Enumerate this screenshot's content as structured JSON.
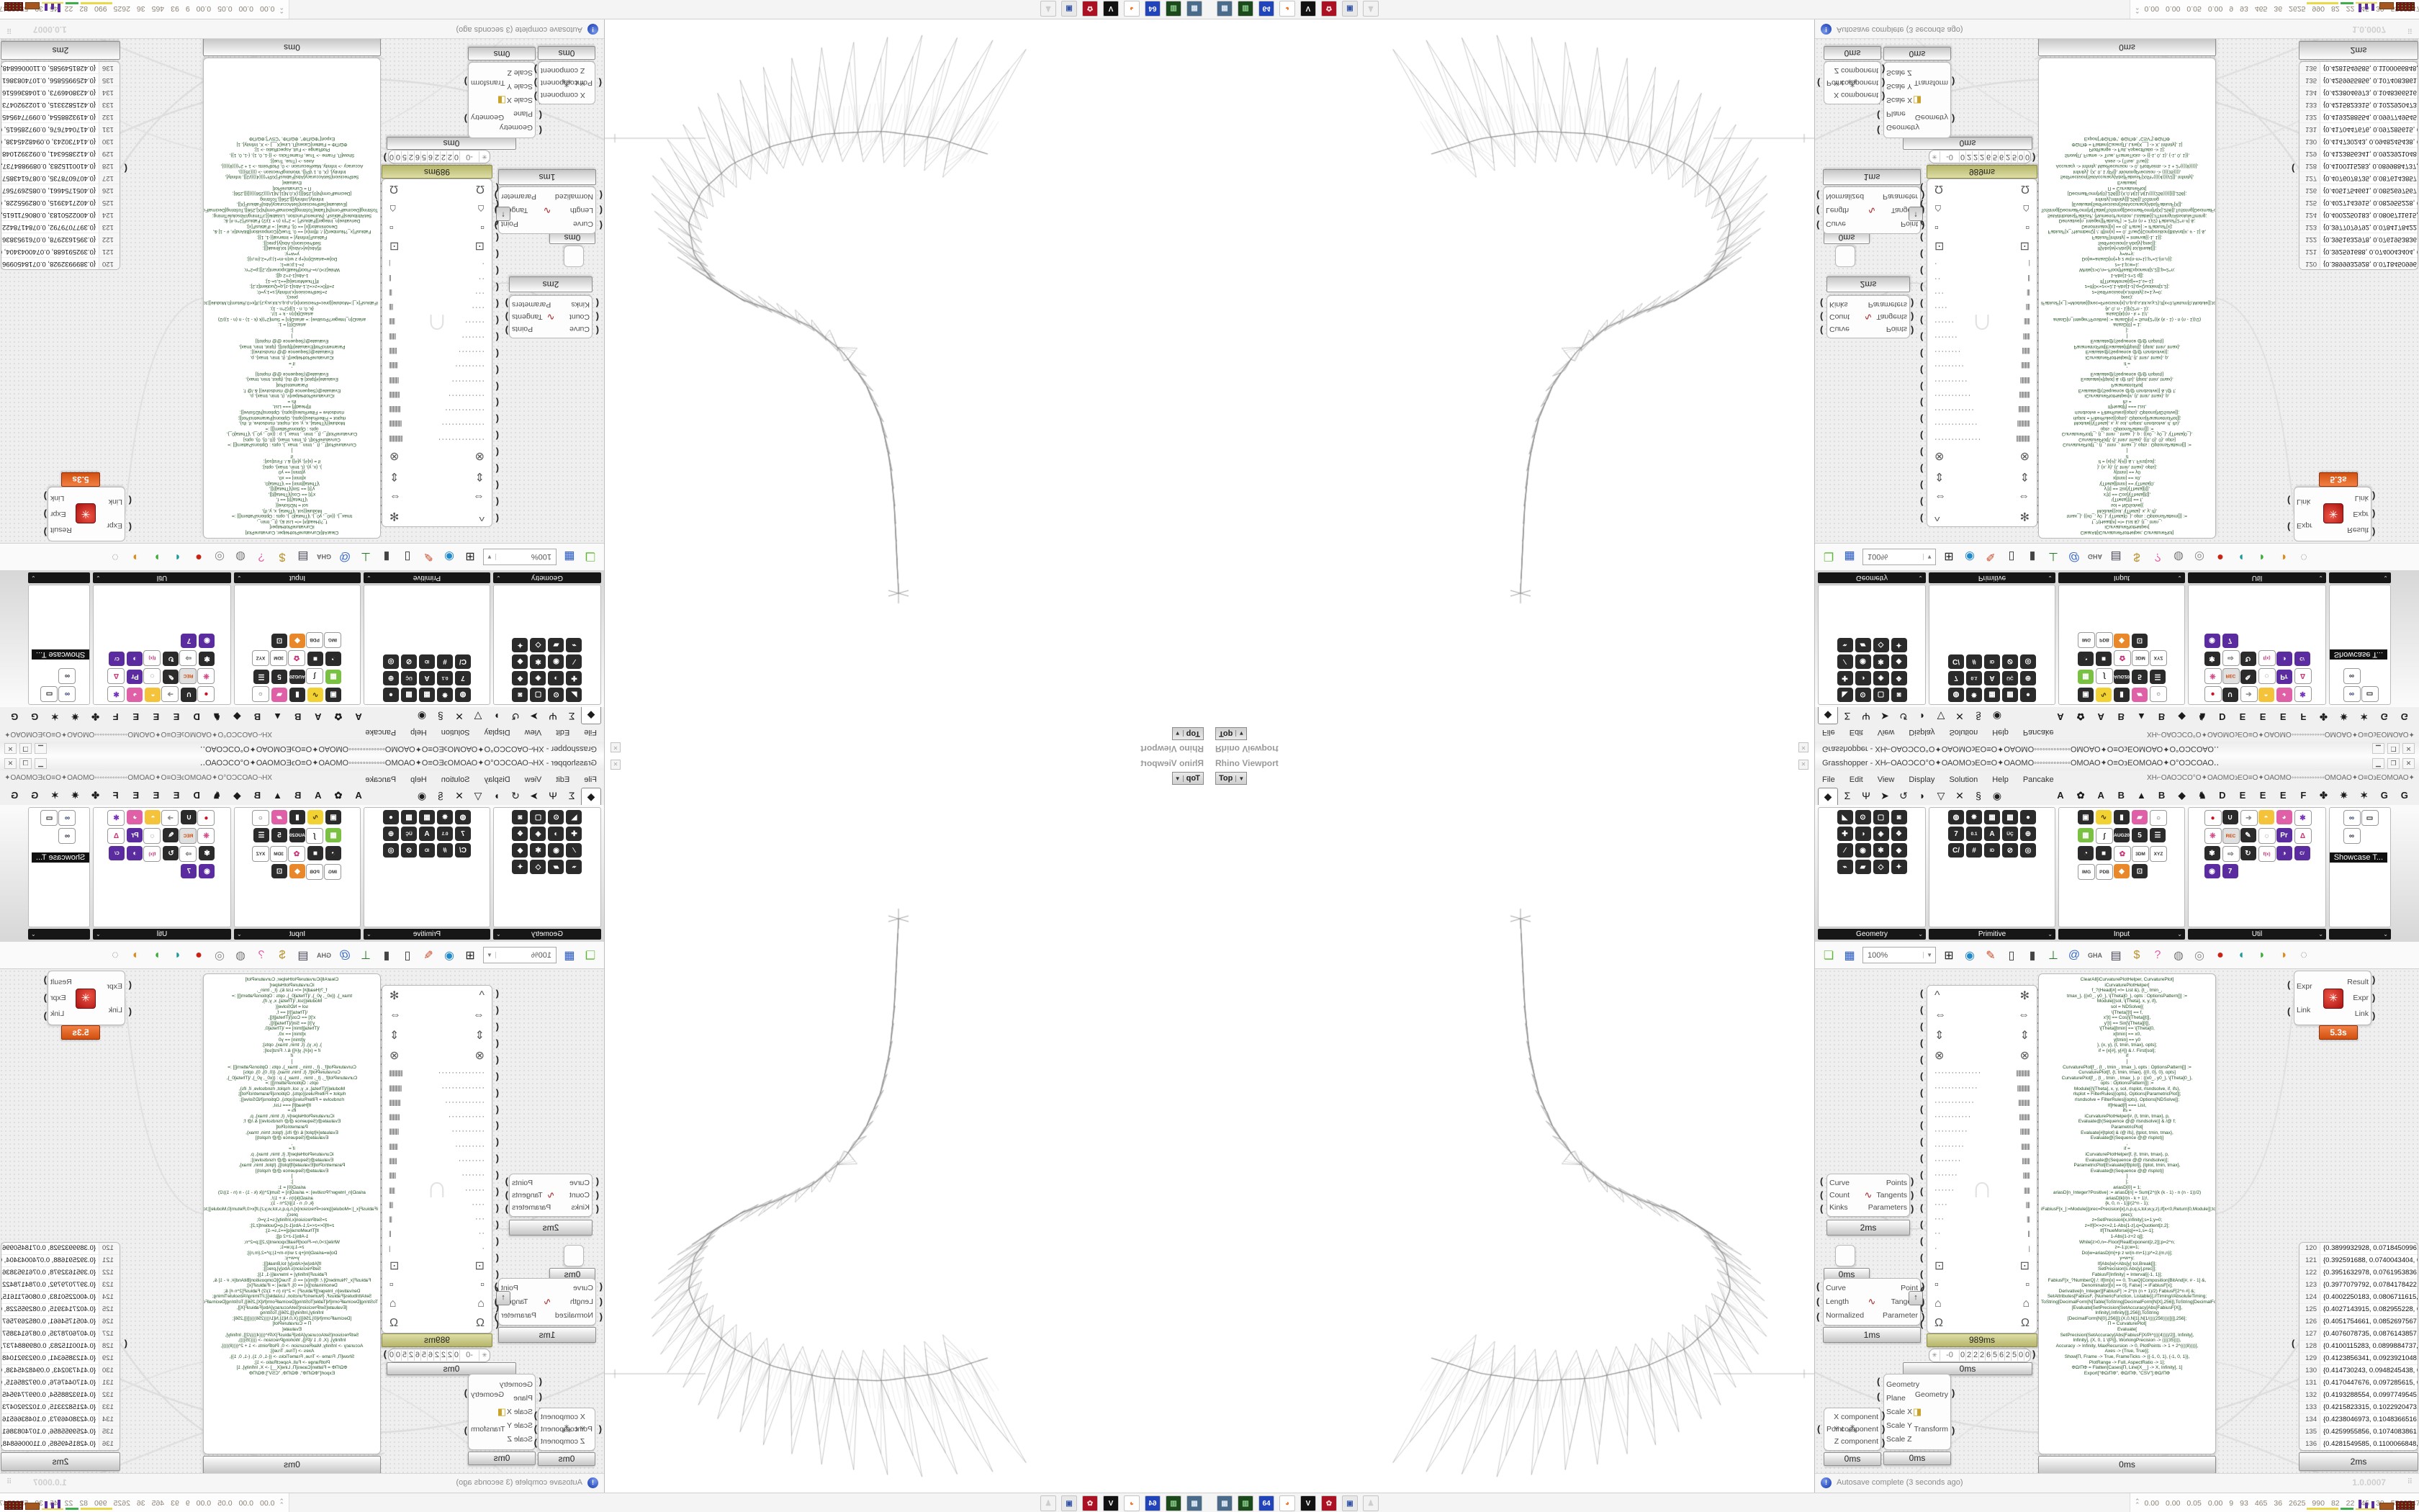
{
  "window": {
    "title": "Grasshopper - XH⌐ΟΑΟϽCΟ°Ο✦ΟΑΟΜΟ϶ΕΟ≡Ο✦ΟΑΟΜΟ◦◦◦◦◦◦◦◦◦◦◦◦◦ΟΜΟΑΟ✦Ο≡Ο϶ΕΟΜΟΑΟ✦Ο°ΟϽCΟΑΟ‥",
    "buttons": {
      "minimize": "▁",
      "maximize": "❐",
      "close": "✕"
    }
  },
  "menu": {
    "items": [
      "File",
      "Edit",
      "View",
      "Display",
      "Solution",
      "Help",
      "Pancake"
    ],
    "right_text": "XH⌐ΟΑΟϽCΟ°Ο✦ΟΑΟΜΟ϶ΕΟ≡Ο✦ΟΑΟΜΟ◦◦◦◦◦◦◦◦◦◦◦◦◦ΟΜΟΑΟ✦Ο≡Ο϶ΕΟΜΟΑΟ✦Ο°ΟϽCΟΑΟ‥"
  },
  "tabs": {
    "icon_tabs": [
      {
        "name": "params",
        "glyph": "◆",
        "active": true
      },
      {
        "name": "maths",
        "glyph": "Σ"
      },
      {
        "name": "sets",
        "glyph": "Ψ"
      },
      {
        "name": "vector",
        "glyph": "➤"
      },
      {
        "name": "curve",
        "glyph": "↺"
      },
      {
        "name": "surface",
        "glyph": "◗"
      },
      {
        "name": "mesh",
        "glyph": "▽"
      },
      {
        "name": "intersect",
        "glyph": "✕"
      },
      {
        "name": "transform",
        "glyph": "§"
      },
      {
        "name": "display",
        "glyph": "◉"
      }
    ],
    "letter_tabs": [
      "A",
      "✿",
      "A",
      "B",
      "▲",
      "B",
      "◆",
      "♞",
      "D",
      "E",
      "E",
      "E",
      "F",
      "✤",
      "✷",
      "✶",
      "G",
      "G"
    ]
  },
  "palettes": {
    "tooltip": "Showcase T...",
    "groups": [
      {
        "label": "Geometry",
        "cols": 4,
        "icons": [
          {
            "g": "◣"
          },
          {
            "g": "⊙"
          },
          {
            "g": "▢"
          },
          {
            "g": "◙"
          },
          {
            "g": "✚"
          },
          {
            "g": "◑"
          },
          {
            "g": "◈"
          },
          {
            "g": "❖"
          },
          {
            "g": "∕"
          },
          {
            "g": "◉"
          },
          {
            "g": "✱"
          },
          {
            "g": "◆"
          },
          {
            "g": "⌁"
          },
          {
            "g": "▰"
          },
          {
            "g": "◇"
          },
          {
            "g": "✦"
          }
        ]
      },
      {
        "label": "Primitive",
        "cols": 5,
        "icons": [
          {
            "g": "◍"
          },
          {
            "g": "✸"
          },
          {
            "g": "▦"
          },
          {
            "g": "▩"
          },
          {
            "g": "●"
          },
          {
            "g": "7"
          },
          {
            "g": "0.1",
            "chip": true
          },
          {
            "g": "A"
          },
          {
            "g": "ÜÇ",
            "chip": true
          },
          {
            "g": "⊕"
          },
          {
            "g": "C/"
          },
          {
            "g": "#"
          },
          {
            "g": "ID",
            "chip": true
          },
          {
            "g": "⊘"
          },
          {
            "g": "◎"
          }
        ]
      },
      {
        "label": "Input",
        "cols": 5,
        "icons": [
          {
            "g": "▣"
          },
          {
            "g": "∿",
            "b": "#f2d233",
            "f": "#4a3a00"
          },
          {
            "g": "▮"
          },
          {
            "g": "▰",
            "b": "#e060a8"
          },
          {
            "g": "○",
            "b": "#ffffff",
            "f": "#444",
            "br": 1
          },
          {
            "g": "▦",
            "b": "#7ac143"
          },
          {
            "g": "∫",
            "b": "#ffffff",
            "f": "#333",
            "br": 1
          },
          {
            "g": "AUG20",
            "chip": true
          },
          {
            "g": "5"
          },
          {
            "g": "☰"
          },
          {
            "g": "◔"
          },
          {
            "g": "■"
          },
          {
            "g": "✿",
            "b": "#ffffff",
            "f": "#cc3377",
            "br": 1
          },
          {
            "g": "3DM",
            "chip": true,
            "b": "#ffffff",
            "f": "#333",
            "br": 1
          },
          {
            "g": "XYZ",
            "chip": true,
            "b": "#ffffff",
            "f": "#333",
            "br": 1
          },
          {
            "g": "IMG",
            "chip": true,
            "b": "#ffffff",
            "f": "#333",
            "br": 1
          },
          {
            "g": "PDB",
            "chip": true,
            "b": "#ffffff",
            "f": "#333",
            "br": 1
          },
          {
            "g": "◆",
            "b": "#e8882a"
          },
          {
            "g": "⊡"
          }
        ]
      },
      {
        "label": "Util",
        "cols": 6,
        "icons": [
          {
            "g": "●",
            "b": "#ffffff",
            "f": "#cc1122",
            "br": 1
          },
          {
            "g": "∪"
          },
          {
            "g": "➔",
            "b": "#ffffff",
            "f": "#888",
            "br": 1
          },
          {
            "g": "◓",
            "b": "#f4c33a"
          },
          {
            "g": "◕",
            "b": "#e060a8"
          },
          {
            "g": "✱",
            "b": "#ffffff",
            "f": "#7733bb",
            "br": 1
          },
          {
            "g": "❊",
            "b": "#ffffff",
            "f": "#cc3377",
            "br": 1
          },
          {
            "g": "REC",
            "chip": true,
            "b": "#e0e0e0",
            "f": "#cc4400",
            "br": 1
          },
          {
            "g": "✎"
          },
          {
            "g": "◌",
            "b": "#ffffff",
            "f": "#555",
            "br": 1
          },
          {
            "g": "Pr",
            "b": "#5a2ca0"
          },
          {
            "g": "Δ",
            "b": "#ffffff",
            "f": "#cc3377",
            "br": 1
          },
          {
            "g": "✾"
          },
          {
            "g": "⇨",
            "b": "#ffffff",
            "f": "#666",
            "br": 1
          },
          {
            "g": "↻"
          },
          {
            "g": "f(x)",
            "chip": true,
            "b": "#ffffff",
            "f": "#cc3377",
            "br": 1
          },
          {
            "g": "◑",
            "b": "#5a2ca0"
          },
          {
            "g": "C/",
            "chip": true,
            "b": "#5a2ca0"
          },
          {
            "g": "◉",
            "b": "#5a2ca0"
          },
          {
            "g": "7",
            "b": "#5a2ca0"
          }
        ]
      },
      {
        "label": "",
        "cols": 2,
        "name": "showcase",
        "icons": [
          {
            "g": "∞",
            "b": "#ffffff",
            "f": "#223366",
            "br": 1
          },
          {
            "g": "▭",
            "b": "#ffffff",
            "f": "#222",
            "br": 1
          },
          {
            "g": "∞",
            "b": "#ffffff",
            "f": "#223",
            "br": 1
          }
        ]
      }
    ]
  },
  "toolbar": {
    "zoom_value": "100%",
    "icons": [
      {
        "name": "open-file",
        "glyph": "❏",
        "color": "#5cb832"
      },
      {
        "name": "save-file",
        "glyph": "▦",
        "color": "#2255cc"
      },
      {
        "name": "zoom-extents",
        "glyph": "⊞",
        "color": "#222"
      },
      {
        "name": "preview",
        "glyph": "◉",
        "color": "#2288cc"
      },
      {
        "name": "sketch-pen",
        "glyph": "✎",
        "color": "#cc4422"
      },
      {
        "name": "clamp",
        "glyph": "▯",
        "color": "#333"
      },
      {
        "name": "gumball",
        "glyph": "▮",
        "color": "#444"
      },
      {
        "name": "axes",
        "glyph": "⊥",
        "color": "#227722"
      },
      {
        "name": "cluster",
        "glyph": "@",
        "color": "#3366cc"
      },
      {
        "name": "gha",
        "glyph": "GHA",
        "color": "#666",
        "text": true
      },
      {
        "name": "doc-search",
        "glyph": "▤",
        "color": "#445"
      },
      {
        "name": "coin-search",
        "glyph": "$",
        "color": "#b8912a"
      },
      {
        "name": "help-box",
        "glyph": "?",
        "color": "#e060a8"
      },
      {
        "name": "bake-gray",
        "glyph": "◍",
        "color": "#777"
      },
      {
        "name": "bake-ring",
        "glyph": "◎",
        "color": "#888"
      },
      {
        "name": "bake-red",
        "glyph": "●",
        "color": "#cc2211"
      },
      {
        "name": "blob-teal",
        "glyph": "◖",
        "color": "#1a9a9a"
      },
      {
        "name": "blob-green",
        "glyph": "◗",
        "color": "#3aaa3a"
      },
      {
        "name": "blob-orange",
        "glyph": "◑",
        "color": "#e08a1a"
      },
      {
        "name": "lasso",
        "glyph": "◌",
        "color": "#888"
      }
    ]
  },
  "components": {
    "curve_analysis": {
      "left": [
        "Curve",
        "Count",
        "Kinks"
      ],
      "right": [
        "Points",
        "Tangents",
        "Parameters"
      ],
      "badge": "2ms",
      "icon": "∿"
    },
    "small_param": {
      "badge": "0ms"
    },
    "evaluate_curve": {
      "left": [
        "Curve",
        "Length",
        "Normalized"
      ],
      "right": [
        "Point",
        "Tangent",
        "Parameter"
      ],
      "badge": "1ms",
      "icon": "∿"
    },
    "ports_panel": {
      "badge": "989ms",
      "rows": [
        {
          "l": "^",
          "r": "✻"
        },
        {
          "l": "⇔",
          "r": "⇔"
        },
        {
          "l": "⇕",
          "r": "⇕"
        },
        {
          "l": "⊗",
          "r": "⊗"
        },
        {
          "l": "··············",
          "r": "||||||||||||||",
          "dim": true
        },
        {
          "l": "·············",
          "r": "|||||||||||||",
          "dim": true
        },
        {
          "l": "············",
          "r": "||||||||||||",
          "dim": true
        },
        {
          "l": "···········",
          "r": "|||||||||||",
          "dim": true
        },
        {
          "l": "··········",
          "r": "||||||||||",
          "dim": true
        },
        {
          "l": "·········",
          "r": "|||||||||",
          "dim": true
        },
        {
          "l": "········",
          "r": "||||||||",
          "dim": true
        },
        {
          "l": "·······",
          "r": "|||||||",
          "dim": true
        },
        {
          "l": "······",
          "r": "||||||",
          "dim": true
        },
        {
          "l": "····",
          "r": "||||",
          "dim": true
        },
        {
          "l": "···",
          "r": "|||",
          "dim": true
        },
        {
          "l": "··",
          "r": "||",
          "dim": true
        },
        {
          "l": "·",
          "r": "|",
          "dim": true
        },
        {
          "l": "⊡",
          "r": "⊡"
        },
        {
          "l": "▫",
          "r": "▫"
        },
        {
          "l": "⌂",
          "r": "⌂"
        },
        {
          "l": "Ω",
          "r": "Ω"
        }
      ]
    },
    "number_slider": {
      "star": "✳",
      "value": "-0",
      "digits": [
        "0",
        "2",
        "2",
        "2",
        "6",
        "5",
        "6",
        "2",
        "5",
        "0",
        "0"
      ],
      "badge": "0ms"
    },
    "scale_xyz": {
      "left": [
        "Geometry",
        "Plane",
        "Scale X",
        "Scale Y",
        "Scale Z"
      ],
      "right": [
        "Geometry",
        "Transform"
      ],
      "badge": "0ms",
      "icon": "◨"
    },
    "point_decompose": {
      "left": [
        "Point"
      ],
      "right": [
        "X component",
        "Y component",
        "Z component"
      ],
      "badge": "0ms",
      "icon": "⁂"
    },
    "expr": {
      "left": [
        "Expr",
        "Link"
      ],
      "right": [
        "Result",
        "Expr",
        "Link"
      ],
      "badge": "5.3s",
      "icon": "✳"
    }
  },
  "code_panel": {
    "badge": "0ms",
    "lines": [
      "ClearAll[iCurvaturePlotHelper, CurvaturePlot]",
      "iCurvaturePlotHelper[",
      "f_?(Head[#] =!= List &), {t_, tmin_,",
      "tmax_}, {{x0_, y0_}, \\[Theta]0_}, opts : OptionsPattern[]] :=",
      "Module[{sol, \\[Theta], x, y, if},",
      "sol = NDSolve[{",
      "\\[Theta]'[t] == f,",
      "x'[t] == Cos[\\[Theta][t]],",
      "y'[t] == Sin[\\[Theta][t]],",
      "\\[Theta][tmin] == \\[Theta]0,",
      "x[tmin] == x0,",
      "y[tmin] == y0",
      "}, {x, y}, {t, tmin, tmax}, opts];",
      "if = {x[#], y[#]} & /. First[sol];",
      "if",
      "]",
      "CurvaturePlot[f_, {t_, tmin_, tmax_}, opts : OptionsPattern[]] :=",
      "CurvaturePlot[f, {t, tmin, tmax}, {{0, 0}, 0}, opts]",
      "CurvaturePlot[f_, {t_, tmin_, tmax_}, p : {{x0_, y0_}, \\[Theta]0_},",
      "opts : OptionsPattern[]] :=",
      "Module[{\\[Theta], x, y, sol, rlsplot, rlsndsolve, if, ifs},",
      "rlsplot = FilterRules[{opts}, Options[ParametricPlot]];",
      "rlsndsolve = FilterRules[{opts}, Options[NDSolve]];",
      "If[Head[f] === List,",
      "ifs =",
      "iCurvaturePlotHelper[#, {t, tmin, tmax}, p,",
      "Evaluate@(Sequence @@ rlsndsolve)] & /@ f;",
      "ParametricPlot[",
      "Evaluate[#[tplot] & /@ ifs], {tplot, tmin, tmax},",
      "Evaluate@(Sequence @@ rlsplot)]",
      ",",
      "if =",
      "iCurvaturePlotHelper[f, {t, tmin, tmax}, p,",
      "Evaluate@(Sequence @@ rlsndsolve)];",
      "ParametricPlot[Evaluate[if[tplot]], {tplot, tmin, tmax},",
      "Evaluate@(Sequence @@ rlsplot)]",
      "]",
      "];",
      " ",
      "ariasD[0] = 1;",
      "ariasD[n_Integer?Positive] := ariasD[n] = Sum[2^((k (k - 1) - n (n - 1))/2) ariasD[k]/(n - k + 1)!,",
      "{k, 0, n - 1}]/(2^n - 1);",
      "iFabiusF[x_]:=Module[{prec=Precision[x],n,p,q,s,tol,w,y,z},If[x<0,Return[0,Module]];tol=10^(-",
      "prec);",
      "z=SetPrecision[x,Infinity];s=1;y=0;",
      "z=If[0<=z<=2,1-Abs[1-z],q=Quotient[z,2];",
      "If[ThueMorse[q]==1,s=-1];",
      "1-Abs[1-z+2 q]];",
      "While[z>0,n=-Floor[RealExponent[z,2]];p=2^n;",
      "z=-1;p;w=1;",
      "Do[w=ariasD[m]+p z w/(n-m+1);p*=2,{m,n}];",
      "y=w+y;",
      "If[Abs[w]<Abs[y] tol,Break[]];",
      "SetPrecision[s Abs[y],prec]];",
      "FabiusF[Infinity] = Interval[{-1, 1}];",
      "FabiusF[x_?NumberQ] /; If[Im[x] == 0, TrueQ[Composition[BitAnd[#, # - 1] &, Denominator][x] == 0], False] := iFabiusF[x];",
      "Derivative[n_Integer][FabiusF] := 2^(n (n + 1)/2) FabiusF[2^n #] &;",
      "SetAttributes[FabiusF, {NumericFunction, Listable}];//Timing//AbsoluteTiming;",
      " ",
      "ToString[DecimalForm[N[Table[ToString[DecimalForm[N[X],256]],ToString[DecimalForm[N",
      "[Evaluate[SetPrecision[SetAccuracy[Abs[FabiusF[X]], Infinity],Infinity]]],256]],ToString",
      "[DecimalForm[N[0],256]]];{X,0,N[1],N[1/((((256))))]}]],256];",
      " ",
      "Π = CurvaturePlot[",
      "Evaluate[",
      "SetPrecision[SetAccuracy[Abs[FabiusF[X/Pi^((((4))))/2]], Infinity],",
      "Infinity], {X, 0, 1 \\[Pi]}, WorkingPrecision -> ((((35)))),",
      "Accuracy -> Infinity, MaxRecursion -> 0, PlotPoints -> 1 + 2^((((8))))],",
      "Axes -> {True, True}];",
      "Show[Π, Frame -> True, FrameTicks -> {{-1, 0, 1}, {-1, 0, 1}},",
      "PlotRange -> Full, AspectRatio -> 1];",
      "ΦΩ/ΠΦ = Flatten[Cases[Π, Line[X__] -> X, Infinity], 1]",
      "Export[\"ΦΩ/ΠΦ\", ΦΩ/ΠΦ, \"CSV\"];ΦΩ/ΠΦ"
    ]
  },
  "data_panel": {
    "badge": "2ms",
    "rows": [
      [
        "120",
        "{0.3899932928, 0.0718450996, 0.0}"
      ],
      [
        "121",
        "{0.392591688, 0.0740043404, 0.0}"
      ],
      [
        "122",
        "{0.3951632978, 0.0761953836, 0.0}"
      ],
      [
        "123",
        "{0.3977079792, 0.0784178422, 0.0}"
      ],
      [
        "124",
        "{0.4002250183, 0.0806711615, 0.0}"
      ],
      [
        "125",
        "{0.4027143915, 0.082955228, 0.0}"
      ],
      [
        "126",
        "{0.4051754661, 0.0852697567, 0.0}"
      ],
      [
        "127",
        "{0.4076078735, 0.0876143857, 0.0}"
      ],
      [
        "128",
        "{0.4100115283, 0.0899884737, 0.0}"
      ],
      [
        "129",
        "{0.4123856341, 0.0923921048, 0.0}"
      ],
      [
        "130",
        "{0.414730243, 0.0948245438, 0.0}"
      ],
      [
        "131",
        "{0.4170447676, 0.097285615, 0.0}"
      ],
      [
        "132",
        "{0.4193288554, 0.0997749545, 0.0}"
      ],
      [
        "133",
        "{0.4215823315, 0.1022920473, 0.0}"
      ],
      [
        "134",
        "{0.4238046973, 0.1048366516, 0.0}"
      ],
      [
        "135",
        "{0.4259955856, 0.1074083861, 0.0}"
      ],
      [
        "136",
        "{0.4281549585, 0.1100066848, 0.0}"
      ],
      [
        "137",
        "{0.4302820424, 0.112631419, 0.0}"
      ]
    ]
  },
  "status_bar": {
    "autosave": "Autosave complete (3 seconds ago)",
    "version": "1.0.0007",
    "grip": "⠿",
    "icon": "!"
  },
  "taskbar": {
    "app_icons": [
      {
        "name": "display-app",
        "glyph": "▦",
        "b": "#4a6b8a",
        "f": "#dde8f4"
      },
      {
        "name": "green-tool-app",
        "glyph": "▥",
        "b": "#1c4a1c",
        "f": "#8fd08f"
      },
      {
        "name": "floppy-64-app",
        "glyph": "64",
        "b": "#2244bb",
        "f": "#fff"
      },
      {
        "name": "firefox-app",
        "glyph": "◕",
        "b": "#ffffff",
        "f": "#e8762c"
      },
      {
        "name": "bw-app",
        "glyph": "V",
        "b": "#111111",
        "f": "#ffffff"
      },
      {
        "name": "red-badge-app",
        "glyph": "✿",
        "b": "#aa1122",
        "f": "#ffdddd"
      },
      {
        "name": "window-app",
        "glyph": "▣",
        "b": "#e8e8e8",
        "f": "#3355aa"
      },
      {
        "name": "ghost-app",
        "glyph": "♟",
        "b": "#f2f2f2",
        "f": "#cccccc"
      }
    ],
    "monitor_chevron": "⌃",
    "monitor_values": [
      "0.00",
      "0.00",
      "0.05",
      "0.00",
      "9",
      "93",
      "465",
      "36",
      "2625",
      "990",
      "82",
      "22",
      "45",
      "39",
      "55637476"
    ]
  },
  "viewport": {
    "title": "Rhino Viewport",
    "view": "Top",
    "view_arrow": "▼",
    "close": "✕"
  }
}
